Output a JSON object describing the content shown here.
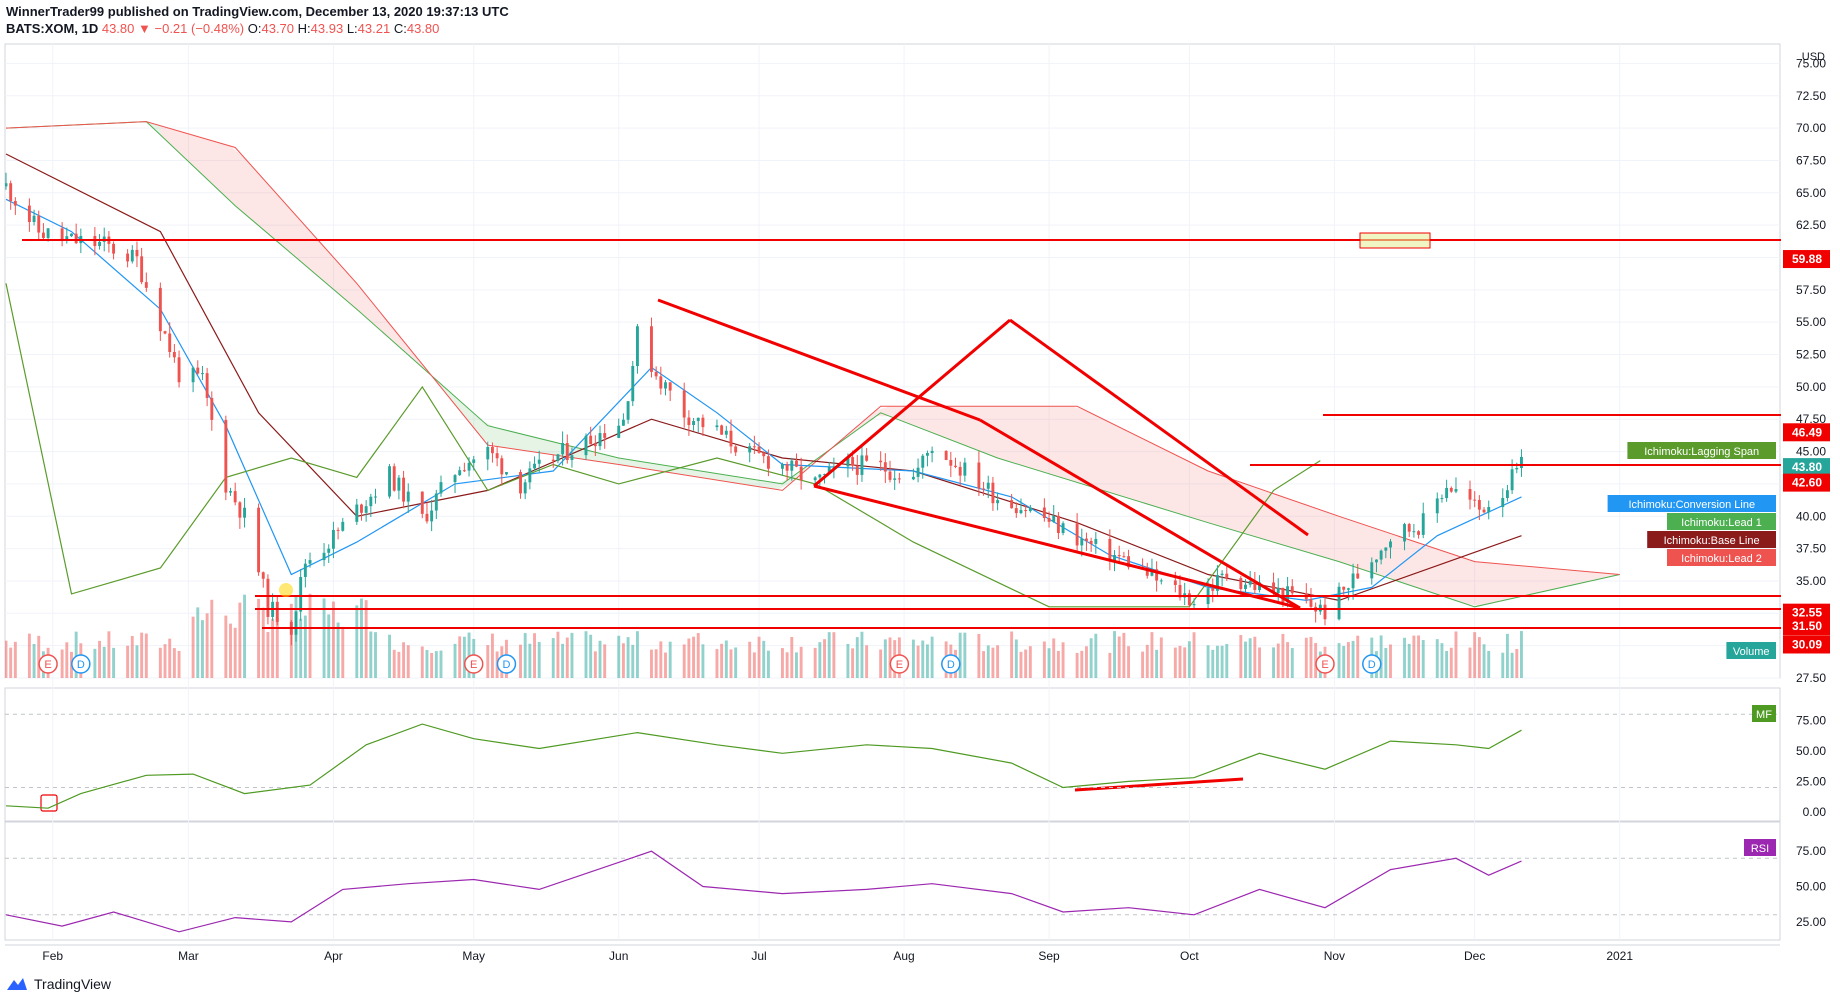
{
  "header": {
    "line1": "WinnerTrader99 published on TradingView.com, December 13, 2020 19:37:13 UTC",
    "symbol": "BATS:XOM, 1D",
    "last": "43.80",
    "change": "▼ −0.21 (−0.48%)",
    "o_label": "O:",
    "o": "43.70",
    "h_label": "H:",
    "h": "43.93",
    "l_label": "L:",
    "l": "43.21",
    "c_label": "C:",
    "c": "43.80"
  },
  "footer": {
    "brand": "TradingView"
  },
  "colors": {
    "up": "#26a69a",
    "down": "#ef5350",
    "conversion": "#2196f3",
    "base": "#8b1a1a",
    "lead1": "#4caf50",
    "lead2": "#ef5350",
    "lagging": "#5b9b2c",
    "mf": "#4f9a23",
    "rsi": "#9c27b0",
    "drawing": "#f10000"
  },
  "chart_data": {
    "type": "candlestick",
    "title": "BATS:XOM, 1D",
    "price_axis": {
      "currency": "USD",
      "ticks": [
        "75.00",
        "72.50",
        "70.00",
        "67.50",
        "65.00",
        "62.50",
        "60.00",
        "57.50",
        "55.00",
        "52.50",
        "50.00",
        "47.50",
        "45.00",
        "42.50",
        "40.00",
        "37.50",
        "35.00",
        "32.50",
        "30.00",
        "27.50"
      ],
      "range": [
        27.5,
        76.5
      ]
    },
    "time_axis": {
      "ticks": [
        {
          "label": "Feb",
          "date": "2020-02-01"
        },
        {
          "label": "Mar",
          "date": "2020-03-01"
        },
        {
          "label": "Apr",
          "date": "2020-04-01"
        },
        {
          "label": "May",
          "date": "2020-05-01"
        },
        {
          "label": "Jun",
          "date": "2020-06-01"
        },
        {
          "label": "Jul",
          "date": "2020-07-01"
        },
        {
          "label": "Aug",
          "date": "2020-08-01"
        },
        {
          "label": "Sep",
          "date": "2020-09-01"
        },
        {
          "label": "Oct",
          "date": "2020-10-01"
        },
        {
          "label": "Nov",
          "date": "2020-11-01"
        },
        {
          "label": "Dec",
          "date": "2020-12-01"
        },
        {
          "label": "2021",
          "date": "2021-01-01"
        }
      ]
    },
    "close_series": [
      [
        "2020-01-22",
        65.5
      ],
      [
        "2020-01-29",
        62.0
      ],
      [
        "2020-02-05",
        61.3
      ],
      [
        "2020-02-12",
        61.0
      ],
      [
        "2020-02-19",
        59.8
      ],
      [
        "2020-02-24",
        55.0
      ],
      [
        "2020-02-28",
        51.0
      ],
      [
        "2020-03-04",
        50.5
      ],
      [
        "2020-03-09",
        42.5
      ],
      [
        "2020-03-13",
        40.0
      ],
      [
        "2020-03-18",
        33.0
      ],
      [
        "2020-03-23",
        31.5
      ],
      [
        "2020-03-26",
        36.5
      ],
      [
        "2020-03-31",
        38.0
      ],
      [
        "2020-04-06",
        40.5
      ],
      [
        "2020-04-13",
        43.2
      ],
      [
        "2020-04-20",
        39.8
      ],
      [
        "2020-04-28",
        44.0
      ],
      [
        "2020-05-04",
        45.0
      ],
      [
        "2020-05-11",
        42.5
      ],
      [
        "2020-05-18",
        44.5
      ],
      [
        "2020-05-26",
        46.0
      ],
      [
        "2020-06-02",
        47.5
      ],
      [
        "2020-06-05",
        54.0
      ],
      [
        "2020-06-09",
        51.0
      ],
      [
        "2020-06-15",
        48.0
      ],
      [
        "2020-06-22",
        46.5
      ],
      [
        "2020-06-29",
        44.8
      ],
      [
        "2020-07-06",
        44.0
      ],
      [
        "2020-07-13",
        42.5
      ],
      [
        "2020-07-20",
        44.0
      ],
      [
        "2020-07-27",
        43.8
      ],
      [
        "2020-08-03",
        43.0
      ],
      [
        "2020-08-07",
        45.5
      ],
      [
        "2020-08-14",
        43.5
      ],
      [
        "2020-08-21",
        41.5
      ],
      [
        "2020-08-28",
        40.5
      ],
      [
        "2020-09-04",
        39.0
      ],
      [
        "2020-09-11",
        37.5
      ],
      [
        "2020-09-18",
        36.5
      ],
      [
        "2020-09-25",
        34.8
      ],
      [
        "2020-10-02",
        33.5
      ],
      [
        "2020-10-09",
        35.5
      ],
      [
        "2020-10-16",
        34.5
      ],
      [
        "2020-10-23",
        33.8
      ],
      [
        "2020-10-30",
        32.6
      ],
      [
        "2020-11-06",
        35.5
      ],
      [
        "2020-11-13",
        38.5
      ],
      [
        "2020-11-20",
        39.5
      ],
      [
        "2020-11-25",
        42.5
      ],
      [
        "2020-12-02",
        40.5
      ],
      [
        "2020-12-07",
        42.0
      ],
      [
        "2020-12-11",
        43.8
      ]
    ],
    "ichimoku": {
      "conversion": [
        [
          "2020-01-22",
          64.5
        ],
        [
          "2020-02-05",
          62.0
        ],
        [
          "2020-02-24",
          56.0
        ],
        [
          "2020-03-09",
          47.0
        ],
        [
          "2020-03-23",
          35.5
        ],
        [
          "2020-04-06",
          38.0
        ],
        [
          "2020-04-27",
          42.5
        ],
        [
          "2020-05-18",
          43.5
        ],
        [
          "2020-06-08",
          51.5
        ],
        [
          "2020-06-22",
          48.0
        ],
        [
          "2020-07-06",
          44.0
        ],
        [
          "2020-08-03",
          43.5
        ],
        [
          "2020-08-24",
          41.5
        ],
        [
          "2020-09-14",
          37.0
        ],
        [
          "2020-10-05",
          34.5
        ],
        [
          "2020-10-26",
          33.5
        ],
        [
          "2020-11-09",
          34.5
        ],
        [
          "2020-11-23",
          38.5
        ],
        [
          "2020-12-11",
          41.5
        ]
      ],
      "base": [
        [
          "2020-01-22",
          68.0
        ],
        [
          "2020-02-24",
          62.0
        ],
        [
          "2020-03-16",
          48.0
        ],
        [
          "2020-04-06",
          40.0
        ],
        [
          "2020-05-04",
          42.0
        ],
        [
          "2020-06-08",
          47.5
        ],
        [
          "2020-07-06",
          44.5
        ],
        [
          "2020-08-03",
          43.5
        ],
        [
          "2020-09-07",
          39.5
        ],
        [
          "2020-10-05",
          35.5
        ],
        [
          "2020-11-02",
          33.5
        ],
        [
          "2020-12-11",
          38.5
        ]
      ],
      "lead1": [
        [
          "2020-01-22",
          70.0
        ],
        [
          "2020-02-21",
          70.5
        ],
        [
          "2020-03-11",
          64.0
        ],
        [
          "2020-04-06",
          56.0
        ],
        [
          "2020-05-04",
          47.0
        ],
        [
          "2020-06-01",
          44.5
        ],
        [
          "2020-07-06",
          42.5
        ],
        [
          "2020-07-27",
          48.0
        ],
        [
          "2020-08-21",
          44.5
        ],
        [
          "2020-10-05",
          39.5
        ],
        [
          "2020-11-02",
          36.5
        ],
        [
          "2020-12-01",
          33.0
        ],
        [
          "2021-01-01",
          35.5
        ]
      ],
      "lead2": [
        [
          "2020-01-22",
          70.0
        ],
        [
          "2020-02-21",
          70.5
        ],
        [
          "2020-03-11",
          68.5
        ],
        [
          "2020-04-06",
          58.0
        ],
        [
          "2020-05-04",
          45.5
        ],
        [
          "2020-06-01",
          44.0
        ],
        [
          "2020-07-06",
          42.0
        ],
        [
          "2020-07-27",
          48.5
        ],
        [
          "2020-09-07",
          48.5
        ],
        [
          "2020-10-05",
          43.5
        ],
        [
          "2020-11-02",
          40.0
        ],
        [
          "2020-12-01",
          36.5
        ],
        [
          "2021-01-01",
          35.5
        ]
      ],
      "lagging": [
        [
          "2020-01-22",
          58.0
        ],
        [
          "2020-02-05",
          34.0
        ],
        [
          "2020-02-24",
          36.0
        ],
        [
          "2020-03-09",
          43.0
        ],
        [
          "2020-03-23",
          44.5
        ],
        [
          "2020-04-06",
          43.0
        ],
        [
          "2020-04-20",
          50.0
        ],
        [
          "2020-05-04",
          42.0
        ],
        [
          "2020-05-18",
          44.0
        ],
        [
          "2020-06-01",
          42.5
        ],
        [
          "2020-06-22",
          44.5
        ],
        [
          "2020-07-13",
          42.5
        ],
        [
          "2020-08-03",
          38.0
        ],
        [
          "2020-09-01",
          33.0
        ],
        [
          "2020-10-01",
          33.0
        ],
        [
          "2020-10-19",
          42.0
        ],
        [
          "2020-10-29",
          44.3
        ]
      ]
    },
    "horizontal_levels": [
      "59.88",
      "46.49",
      "43.80",
      "42.60",
      "32.55",
      "31.50",
      "30.09"
    ],
    "indicator_labels": [
      {
        "text": "Ichimoku:Lagging Span",
        "color": "#5b9b2c"
      },
      {
        "text": "Ichimoku:Conversion Line",
        "color": "#2196f3"
      },
      {
        "text": "Ichimoku:Lead 1",
        "color": "#4caf50"
      },
      {
        "text": "Ichimoku:Base Line",
        "color": "#8b1a1a"
      },
      {
        "text": "Ichimoku:Lead 2",
        "color": "#ef5350"
      },
      {
        "text": "Volume",
        "color": "#26a69a"
      }
    ],
    "earnings_markers": [
      {
        "date": "2020-01-31",
        "letter": "E"
      },
      {
        "date": "2020-02-07",
        "letter": "D"
      },
      {
        "date": "2020-05-01",
        "letter": "E"
      },
      {
        "date": "2020-05-08",
        "letter": "D"
      },
      {
        "date": "2020-07-31",
        "letter": "E"
      },
      {
        "date": "2020-08-11",
        "letter": "D"
      },
      {
        "date": "2020-10-30",
        "letter": "E"
      },
      {
        "date": "2020-11-09",
        "letter": "D"
      }
    ],
    "money_flow": {
      "label": "MF",
      "ticks": [
        "75.00",
        "50.00",
        "25.00",
        "0.00"
      ],
      "range": [
        -5,
        95
      ],
      "series": [
        [
          "2020-01-22",
          5
        ],
        [
          "2020-01-31",
          3
        ],
        [
          "2020-02-07",
          15
        ],
        [
          "2020-02-21",
          30
        ],
        [
          "2020-03-02",
          31
        ],
        [
          "2020-03-13",
          15
        ],
        [
          "2020-03-27",
          22
        ],
        [
          "2020-04-08",
          55
        ],
        [
          "2020-04-20",
          72
        ],
        [
          "2020-05-01",
          60
        ],
        [
          "2020-05-15",
          52
        ],
        [
          "2020-06-05",
          65
        ],
        [
          "2020-06-22",
          55
        ],
        [
          "2020-07-06",
          48
        ],
        [
          "2020-07-24",
          55
        ],
        [
          "2020-08-07",
          52
        ],
        [
          "2020-08-24",
          40
        ],
        [
          "2020-09-04",
          20
        ],
        [
          "2020-09-18",
          25
        ],
        [
          "2020-10-02",
          28
        ],
        [
          "2020-10-16",
          48
        ],
        [
          "2020-10-30",
          35
        ],
        [
          "2020-11-13",
          58
        ],
        [
          "2020-11-27",
          55
        ],
        [
          "2020-12-04",
          52
        ],
        [
          "2020-12-11",
          67
        ]
      ]
    },
    "rsi": {
      "label": "RSI",
      "ticks": [
        "75.00",
        "50.00",
        "25.00"
      ],
      "range": [
        15,
        90
      ],
      "series": [
        [
          "2020-01-22",
          30
        ],
        [
          "2020-02-03",
          22
        ],
        [
          "2020-02-14",
          32
        ],
        [
          "2020-02-28",
          18
        ],
        [
          "2020-03-11",
          28
        ],
        [
          "2020-03-23",
          25
        ],
        [
          "2020-04-03",
          48
        ],
        [
          "2020-04-17",
          52
        ],
        [
          "2020-05-01",
          55
        ],
        [
          "2020-05-15",
          48
        ],
        [
          "2020-06-08",
          75
        ],
        [
          "2020-06-19",
          50
        ],
        [
          "2020-07-06",
          45
        ],
        [
          "2020-07-24",
          48
        ],
        [
          "2020-08-07",
          52
        ],
        [
          "2020-08-24",
          45
        ],
        [
          "2020-09-04",
          32
        ],
        [
          "2020-09-18",
          35
        ],
        [
          "2020-10-02",
          30
        ],
        [
          "2020-10-16",
          48
        ],
        [
          "2020-10-30",
          35
        ],
        [
          "2020-11-13",
          62
        ],
        [
          "2020-11-27",
          70
        ],
        [
          "2020-12-04",
          58
        ],
        [
          "2020-12-11",
          68
        ]
      ]
    }
  }
}
